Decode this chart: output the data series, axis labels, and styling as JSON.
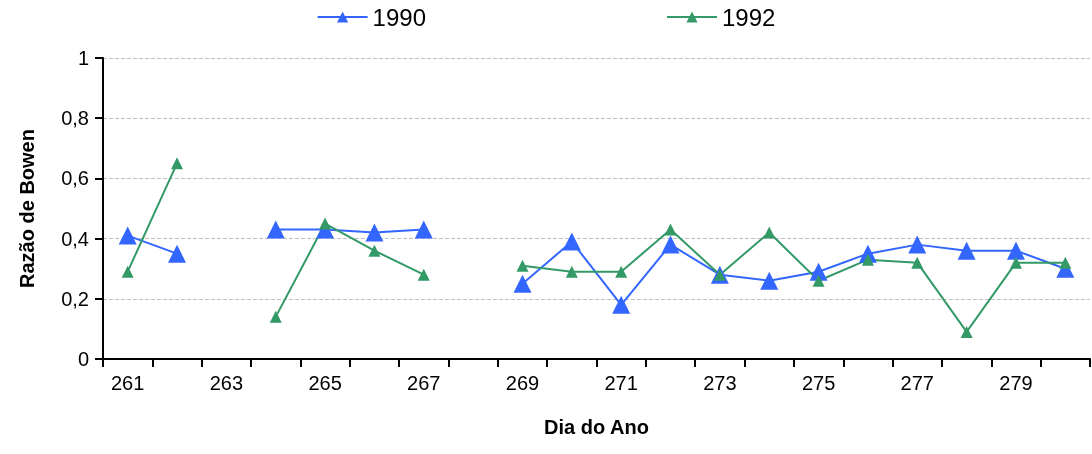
{
  "chart_data": {
    "type": "line",
    "xlabel": "Dia do Ano",
    "ylabel": "Razão de Bowen",
    "categories": [
      "261",
      null,
      "263",
      null,
      "265",
      null,
      "267",
      null,
      "269",
      null,
      "271",
      null,
      "273",
      null,
      "275",
      null,
      "277",
      null,
      "279",
      null
    ],
    "series": [
      {
        "name": "1990",
        "color": "#3366ff",
        "values": [
          0.41,
          0.35,
          null,
          0.43,
          0.43,
          0.42,
          0.43,
          null,
          0.25,
          0.39,
          0.18,
          0.38,
          0.28,
          0.26,
          0.29,
          0.35,
          0.38,
          0.36,
          0.36,
          0.3
        ]
      },
      {
        "name": "1992",
        "color": "#339966",
        "values": [
          0.29,
          0.65,
          null,
          0.14,
          0.45,
          0.36,
          0.28,
          null,
          0.31,
          0.29,
          0.29,
          0.43,
          0.28,
          0.42,
          0.26,
          0.33,
          0.32,
          0.09,
          0.32,
          0.32
        ]
      }
    ],
    "ylim": [
      0,
      1
    ],
    "yticks": [
      0,
      {
        "value": 0.2,
        "label": "0,2"
      },
      {
        "value": 0.4,
        "label": "0,4"
      },
      {
        "value": 0.6,
        "label": "0,6"
      },
      {
        "value": 0.8,
        "label": "0,8"
      },
      1
    ],
    "grid": "y",
    "legend": "top",
    "marker": "triangle",
    "line_style": "solid"
  }
}
